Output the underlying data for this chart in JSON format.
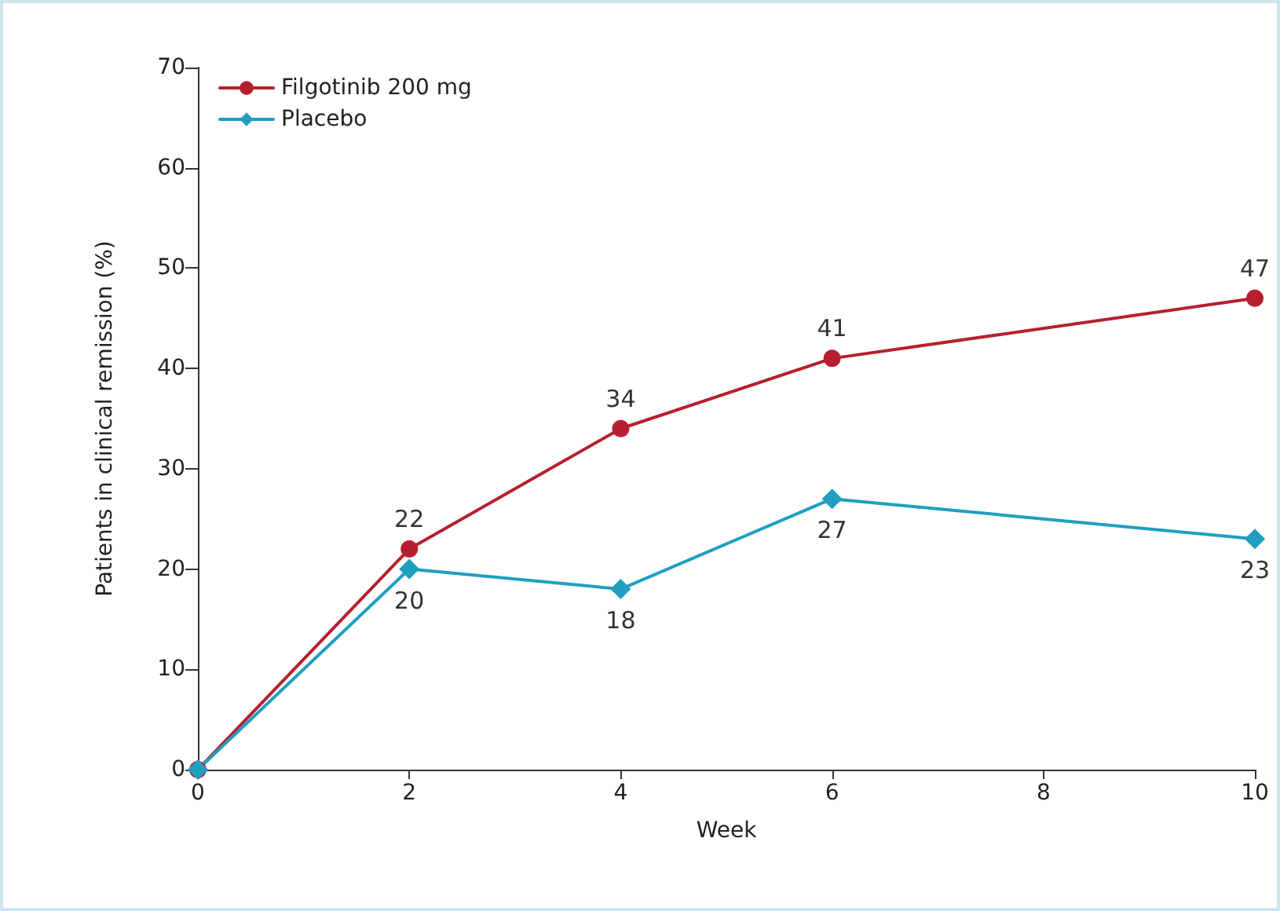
{
  "chart_data": {
    "type": "line",
    "xlabel": "Week",
    "ylabel": "Patients in clinical remission (%)",
    "x": [
      0,
      2,
      4,
      6,
      10
    ],
    "series": [
      {
        "name": "Filgotinib 200 mg",
        "color": "#b5202e",
        "marker": "circle",
        "values": [
          0,
          22,
          34,
          41,
          47
        ],
        "value_labels": [
          null,
          "22",
          "34",
          "41",
          "47"
        ]
      },
      {
        "name": "Placebo",
        "color": "#1f9fbf",
        "marker": "diamond",
        "values": [
          0,
          20,
          18,
          27,
          23
        ],
        "value_labels": [
          null,
          "20",
          "18",
          "27",
          "23"
        ]
      }
    ],
    "xlim": [
      0,
      10
    ],
    "xticks": [
      0,
      2,
      4,
      6,
      8,
      10
    ],
    "ylim": [
      0,
      70
    ],
    "yticks": [
      0,
      10,
      20,
      30,
      40,
      50,
      60,
      70
    ],
    "grid": false,
    "legend": "top left",
    "line_style": "solid"
  }
}
